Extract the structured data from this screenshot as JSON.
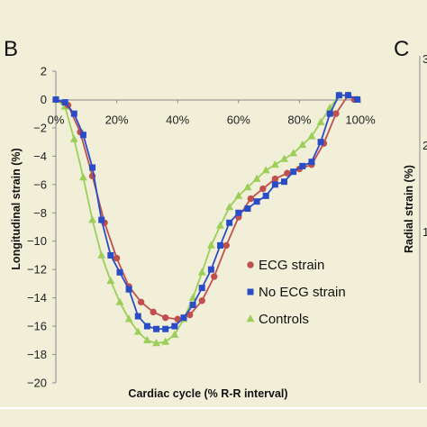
{
  "panel_b": {
    "letter": "B",
    "chart_data": {
      "type": "line",
      "xlabel": "Cardiac cycle (% R-R interval)",
      "ylabel": "Longitudinal strain (%)",
      "xlim": [
        0,
        100
      ],
      "ylim": [
        -20,
        2
      ],
      "x_ticks": [
        {
          "value": 0,
          "label": "0%"
        },
        {
          "value": 20,
          "label": "20%"
        },
        {
          "value": 40,
          "label": "40%"
        },
        {
          "value": 60,
          "label": "60%"
        },
        {
          "value": 80,
          "label": "80%"
        },
        {
          "value": 100,
          "label": "100%"
        }
      ],
      "y_ticks": [
        2,
        0,
        -2,
        -4,
        -6,
        -8,
        -10,
        -12,
        -14,
        -16,
        -18,
        -20
      ],
      "grid": false,
      "legend_position": "right",
      "series": [
        {
          "name": "ECG strain",
          "color": "#c0504d",
          "marker": "circle",
          "x": [
            0,
            4,
            8,
            12,
            16,
            20,
            24,
            28,
            32,
            36,
            40,
            44,
            48,
            52,
            56,
            60,
            64,
            68,
            72,
            76,
            80,
            84,
            88,
            92,
            96,
            98
          ],
          "y": [
            0,
            -0.4,
            -2.3,
            -5.4,
            -8.7,
            -11.2,
            -13.2,
            -14.3,
            -15.0,
            -15.4,
            -15.5,
            -15.2,
            -14.2,
            -12.5,
            -10.3,
            -8.3,
            -7.0,
            -6.3,
            -5.6,
            -5.2,
            -4.9,
            -4.6,
            -3.1,
            -1.0,
            0.3,
            0
          ]
        },
        {
          "name": "No ECG strain",
          "color": "#2a4cc7",
          "marker": "square",
          "x": [
            0,
            3,
            6,
            9,
            12,
            15,
            18,
            21,
            24,
            27,
            30,
            33,
            36,
            39,
            42,
            45,
            48,
            51,
            54,
            57,
            60,
            63,
            66,
            69,
            72,
            75,
            78,
            81,
            84,
            87,
            90,
            93,
            96,
            99
          ],
          "y": [
            0,
            -0.2,
            -1.0,
            -2.5,
            -4.8,
            -8.5,
            -11.0,
            -12.2,
            -13.4,
            -15.3,
            -16.0,
            -16.2,
            -16.2,
            -16.0,
            -15.4,
            -14.5,
            -13.3,
            -12.0,
            -10.3,
            -8.7,
            -8.0,
            -7.7,
            -7.2,
            -6.8,
            -6.0,
            -5.8,
            -5.1,
            -4.7,
            -4.4,
            -3.0,
            -1.0,
            0.3,
            0.3,
            0
          ]
        },
        {
          "name": "Controls",
          "color": "#9ccf5a",
          "marker": "triangle",
          "x": [
            0,
            3,
            6,
            9,
            12,
            15,
            18,
            21,
            24,
            27,
            30,
            33,
            36,
            39,
            42,
            45,
            48,
            51,
            54,
            57,
            60,
            63,
            66,
            69,
            72,
            75,
            78,
            81,
            84,
            87,
            90,
            93,
            96,
            99
          ],
          "y": [
            0,
            -0.5,
            -2.8,
            -5.5,
            -8.5,
            -11.0,
            -12.8,
            -14.3,
            -15.5,
            -16.4,
            -17.0,
            -17.2,
            -17.1,
            -16.6,
            -15.5,
            -14.0,
            -12.2,
            -10.3,
            -8.9,
            -7.6,
            -6.8,
            -6.2,
            -5.6,
            -5.0,
            -4.6,
            -4.2,
            -3.8,
            -3.2,
            -2.6,
            -1.6,
            -0.6,
            0.3,
            0.3,
            0
          ]
        }
      ]
    }
  },
  "panel_c": {
    "letter": "C",
    "ylabel": "Radial strain (%)",
    "tick_fragments": [
      "3",
      "2",
      "1"
    ]
  }
}
